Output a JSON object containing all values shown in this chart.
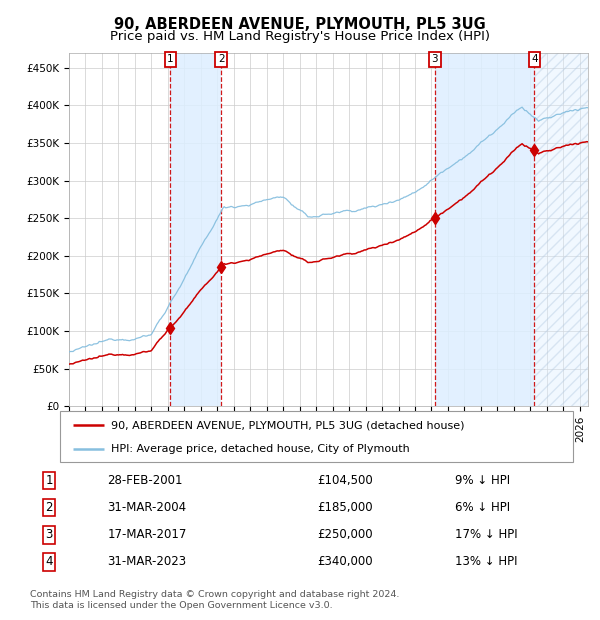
{
  "title": "90, ABERDEEN AVENUE, PLYMOUTH, PL5 3UG",
  "subtitle": "Price paid vs. HM Land Registry's House Price Index (HPI)",
  "xlim_start": 1995.0,
  "xlim_end": 2026.5,
  "ylim": [
    0,
    470000
  ],
  "yticks": [
    0,
    50000,
    100000,
    150000,
    200000,
    250000,
    300000,
    350000,
    400000,
    450000
  ],
  "ytick_labels": [
    "£0",
    "£50K",
    "£100K",
    "£150K",
    "£200K",
    "£250K",
    "£300K",
    "£350K",
    "£400K",
    "£450K"
  ],
  "sale_dates_decimal": [
    2001.16,
    2004.25,
    2017.21,
    2023.25
  ],
  "sale_prices": [
    104500,
    185000,
    250000,
    340000
  ],
  "sale_labels": [
    "1",
    "2",
    "3",
    "4"
  ],
  "hpi_color": "#87bfdf",
  "price_color": "#cc0000",
  "background_color": "#ffffff",
  "grid_color": "#cccccc",
  "shade_color": "#ddeeff",
  "legend_entries": [
    "90, ABERDEEN AVENUE, PLYMOUTH, PL5 3UG (detached house)",
    "HPI: Average price, detached house, City of Plymouth"
  ],
  "table_rows": [
    [
      "1",
      "28-FEB-2001",
      "£104,500",
      "9% ↓ HPI"
    ],
    [
      "2",
      "31-MAR-2004",
      "£185,000",
      "6% ↓ HPI"
    ],
    [
      "3",
      "17-MAR-2017",
      "£250,000",
      "17% ↓ HPI"
    ],
    [
      "4",
      "31-MAR-2023",
      "£340,000",
      "13% ↓ HPI"
    ]
  ],
  "footnote": "Contains HM Land Registry data © Crown copyright and database right 2024.\nThis data is licensed under the Open Government Licence v3.0.",
  "title_fontsize": 10.5,
  "subtitle_fontsize": 9.5,
  "axis_fontsize": 7.5,
  "legend_fontsize": 8,
  "table_fontsize": 8.5
}
